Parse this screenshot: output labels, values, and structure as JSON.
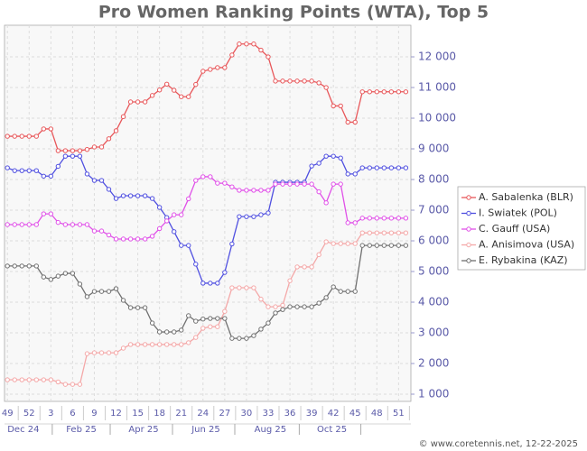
{
  "chart_data": {
    "type": "line",
    "title": "Pro Women Ranking Points (WTA), Top 5",
    "source": "© www.coretennis.net, 12-22-2025",
    "x": [
      0,
      1,
      2,
      3,
      4,
      5,
      6,
      7,
      8,
      9,
      10,
      11,
      12,
      13,
      14,
      15,
      16,
      17,
      18,
      19,
      20,
      21,
      22,
      23,
      24,
      25,
      26,
      27,
      28,
      29,
      30,
      31,
      32,
      33,
      34,
      35,
      36,
      37,
      38,
      39,
      40,
      41,
      42,
      43,
      44,
      45,
      46,
      47,
      48,
      49,
      50,
      51,
      52,
      53,
      54,
      55
    ],
    "xlim": [
      -0.4,
      55.7
    ],
    "xticks": [
      {
        "value": 0,
        "label": "49"
      },
      {
        "value": 3,
        "label": "52"
      },
      {
        "value": 6,
        "label": "3"
      },
      {
        "value": 9,
        "label": "6"
      },
      {
        "value": 12,
        "label": "9"
      },
      {
        "value": 15,
        "label": "12"
      },
      {
        "value": 18,
        "label": "15"
      },
      {
        "value": 21,
        "label": "18"
      },
      {
        "value": 24,
        "label": "21"
      },
      {
        "value": 27,
        "label": "24"
      },
      {
        "value": 30,
        "label": "27"
      },
      {
        "value": 33,
        "label": "30"
      },
      {
        "value": 36,
        "label": "33"
      },
      {
        "value": 39,
        "label": "36"
      },
      {
        "value": 42,
        "label": "39"
      },
      {
        "value": 45,
        "label": "42"
      },
      {
        "value": 48,
        "label": "45"
      },
      {
        "value": 51,
        "label": "48"
      },
      {
        "value": 54,
        "label": "51"
      }
    ],
    "month_ticks": [
      {
        "value": 2.2,
        "label": "Dec 24"
      },
      {
        "value": 10.2,
        "label": "Feb 25"
      },
      {
        "value": 18.8,
        "label": "Apr 25"
      },
      {
        "value": 27.4,
        "label": "Jun 25"
      },
      {
        "value": 36.3,
        "label": "Aug 25"
      },
      {
        "value": 44.8,
        "label": "Oct 25"
      }
    ],
    "ylim": [
      765,
      13030
    ],
    "yticks": [
      {
        "value": 1000,
        "label": "1 000"
      },
      {
        "value": 2000,
        "label": "2 000"
      },
      {
        "value": 3000,
        "label": "3 000"
      },
      {
        "value": 4000,
        "label": "4 000"
      },
      {
        "value": 5000,
        "label": "5 000"
      },
      {
        "value": 6000,
        "label": "6 000"
      },
      {
        "value": 7000,
        "label": "7 000"
      },
      {
        "value": 8000,
        "label": "8 000"
      },
      {
        "value": 9000,
        "label": "9 000"
      },
      {
        "value": 10000,
        "label": "10 000"
      },
      {
        "value": 11000,
        "label": "11 000"
      },
      {
        "value": 12000,
        "label": "12 000"
      }
    ],
    "grid": true,
    "legend": "right",
    "series": [
      {
        "name": "A. Sabalenka (BLR)",
        "color": "#e8575a",
        "values": [
          9410,
          9410,
          9410,
          9410,
          9410,
          9650,
          9650,
          8940,
          8940,
          8940,
          8940,
          8980,
          9060,
          9060,
          9330,
          9590,
          10050,
          10530,
          10530,
          10530,
          10740,
          10920,
          11110,
          10910,
          10700,
          10700,
          11100,
          11530,
          11590,
          11650,
          11650,
          12060,
          12420,
          12420,
          12420,
          12220,
          12000,
          11210,
          11210,
          11210,
          11210,
          11210,
          11210,
          11150,
          11000,
          10400,
          10400,
          9870,
          9870,
          10860,
          10860,
          10860,
          10860,
          10860,
          10860,
          10860
        ]
      },
      {
        "name": "I. Swiatek (POL)",
        "color": "#5050e0",
        "values": [
          8380,
          8290,
          8290,
          8290,
          8290,
          8110,
          8110,
          8430,
          8760,
          8760,
          8760,
          8180,
          7970,
          7970,
          7680,
          7380,
          7470,
          7470,
          7470,
          7470,
          7380,
          7090,
          6760,
          6300,
          5850,
          5850,
          5240,
          4620,
          4620,
          4620,
          4970,
          5900,
          6790,
          6790,
          6790,
          6850,
          6910,
          7910,
          7910,
          7910,
          7910,
          7910,
          8440,
          8530,
          8760,
          8760,
          8700,
          8180,
          8180,
          8380,
          8380,
          8380,
          8380,
          8380,
          8380,
          8380
        ]
      },
      {
        "name": "C. Gauff (USA)",
        "color": "#e050e8",
        "values": [
          6530,
          6530,
          6530,
          6530,
          6530,
          6880,
          6880,
          6600,
          6530,
          6530,
          6530,
          6530,
          6320,
          6320,
          6190,
          6060,
          6060,
          6060,
          6060,
          6060,
          6150,
          6400,
          6650,
          6850,
          6850,
          7370,
          7970,
          8090,
          8090,
          7880,
          7880,
          7760,
          7650,
          7650,
          7650,
          7650,
          7650,
          7850,
          7850,
          7850,
          7850,
          7850,
          7850,
          7600,
          7240,
          7850,
          7850,
          6590,
          6590,
          6740,
          6740,
          6740,
          6740,
          6740,
          6740,
          6740
        ]
      },
      {
        "name": "A. Anisimova (USA)",
        "color": "#f4a8a8",
        "values": [
          1470,
          1470,
          1470,
          1470,
          1470,
          1470,
          1470,
          1400,
          1320,
          1320,
          1320,
          2320,
          2350,
          2350,
          2350,
          2350,
          2500,
          2620,
          2620,
          2620,
          2620,
          2620,
          2620,
          2620,
          2620,
          2680,
          2850,
          3150,
          3200,
          3200,
          3700,
          4470,
          4470,
          4470,
          4470,
          4100,
          3850,
          3850,
          3900,
          4700,
          5150,
          5150,
          5150,
          5550,
          5970,
          5910,
          5910,
          5910,
          5910,
          6260,
          6260,
          6260,
          6260,
          6260,
          6260,
          6260
        ]
      },
      {
        "name": "E. Rybakina (KAZ)",
        "color": "#707070",
        "values": [
          5180,
          5180,
          5180,
          5180,
          5180,
          4820,
          4740,
          4850,
          4940,
          4940,
          4590,
          4180,
          4350,
          4350,
          4350,
          4440,
          4060,
          3820,
          3820,
          3820,
          3320,
          3030,
          3030,
          3030,
          3090,
          3560,
          3380,
          3450,
          3470,
          3470,
          3470,
          2820,
          2820,
          2820,
          2910,
          3120,
          3320,
          3650,
          3760,
          3850,
          3850,
          3850,
          3850,
          3970,
          4150,
          4500,
          4350,
          4350,
          4350,
          5850,
          5850,
          5850,
          5850,
          5850,
          5850,
          5850
        ]
      }
    ]
  }
}
